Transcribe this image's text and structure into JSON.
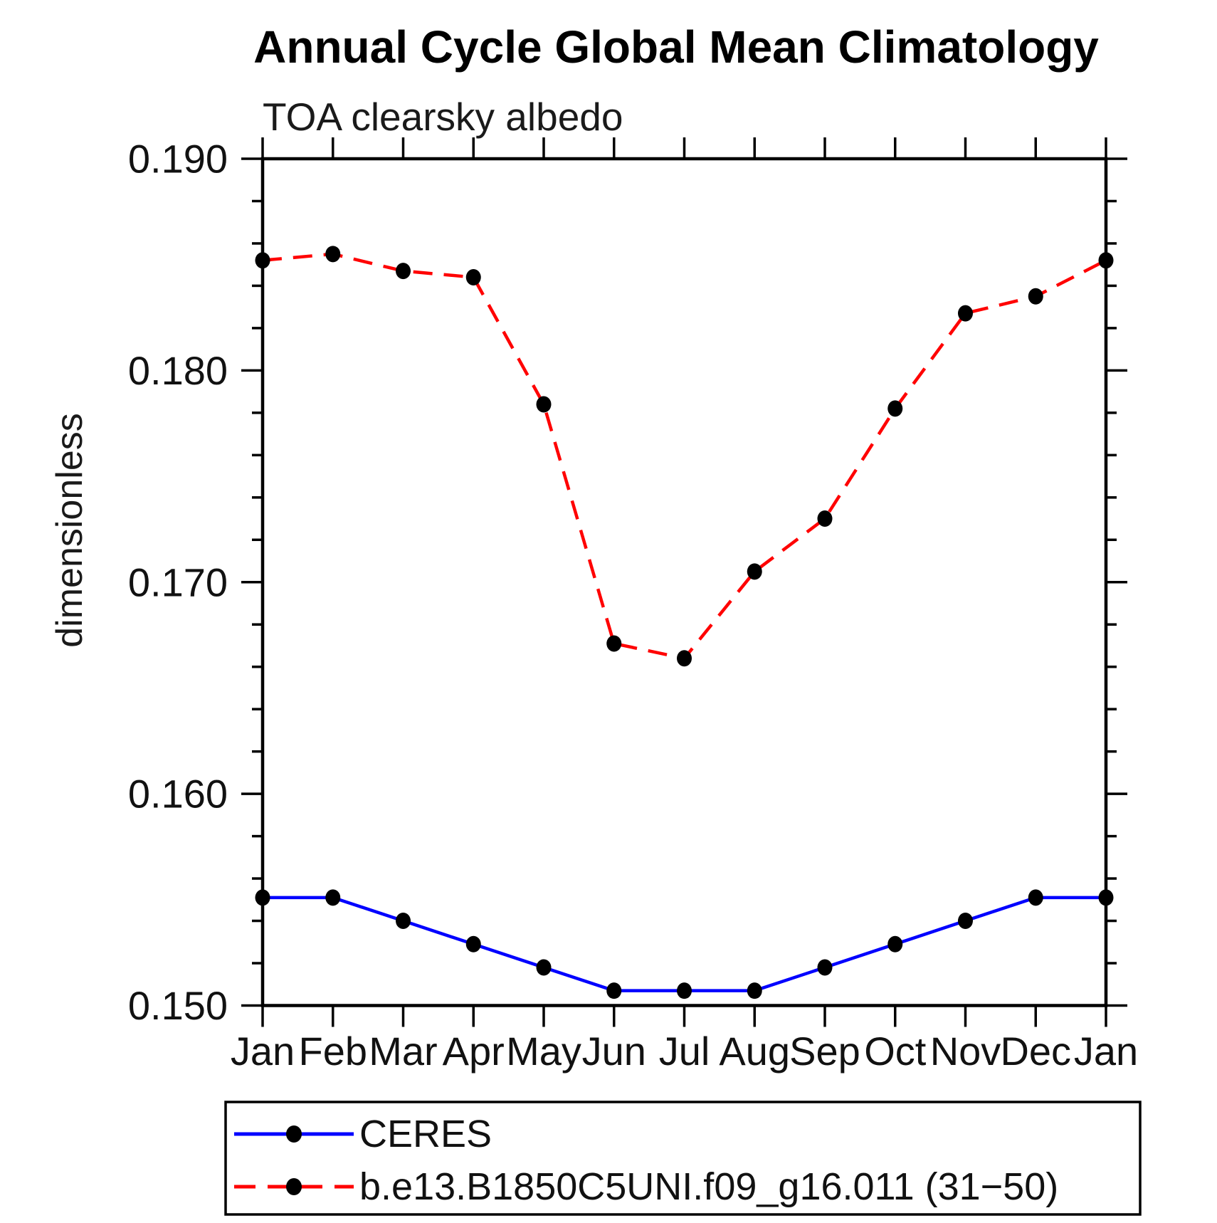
{
  "figure": {
    "title": "Annual Cycle Global Mean Climatology",
    "subtitle": "TOA clearsky albedo",
    "ylabel": "dimensionless"
  },
  "legend": {
    "entries": [
      {
        "label": "CERES",
        "color": "#0000ff",
        "line_style": "solid",
        "marker": "filled-circle",
        "marker_color": "#000000"
      },
      {
        "label": "b.e13.B1850C5UNI.f09_g16.011 (31−50)",
        "color": "#ff0000",
        "line_style": "dashed",
        "marker": "filled-circle",
        "marker_color": "#000000"
      }
    ]
  },
  "chart_data": {
    "type": "line",
    "title": "Annual Cycle Global Mean Climatology",
    "subtitle": "TOA clearsky albedo",
    "xlabel": "",
    "ylabel": "dimensionless",
    "categories": [
      "Jan",
      "Feb",
      "Mar",
      "Apr",
      "May",
      "Jun",
      "Jul",
      "Aug",
      "Sep",
      "Oct",
      "Nov",
      "Dec",
      "Jan"
    ],
    "series": [
      {
        "name": "CERES",
        "color": "#0000ff",
        "line_style": "solid",
        "marker": "filled-circle",
        "marker_color": "#000000",
        "values": [
          0.1551,
          0.1551,
          0.154,
          0.1529,
          0.1518,
          0.1507,
          0.1507,
          0.1507,
          0.1518,
          0.1529,
          0.154,
          0.1551,
          0.1551
        ]
      },
      {
        "name": "b.e13.B1850C5UNI.f09_g16.011 (31−50)",
        "color": "#ff0000",
        "line_style": "dashed",
        "marker": "filled-circle",
        "marker_color": "#000000",
        "values": [
          0.1852,
          0.1855,
          0.1847,
          0.1844,
          0.1784,
          0.1671,
          0.1664,
          0.1705,
          0.173,
          0.1782,
          0.1827,
          0.1835,
          0.1852
        ]
      }
    ],
    "ylim": [
      0.15,
      0.19
    ],
    "ytick_major_step": 0.01,
    "ytick_minor_step": 0.002,
    "ytick_labels": [
      "0.150",
      "0.160",
      "0.170",
      "0.180",
      "0.190"
    ],
    "grid": false,
    "tick_direction": "out",
    "legend_position": "bottom-left-box"
  }
}
